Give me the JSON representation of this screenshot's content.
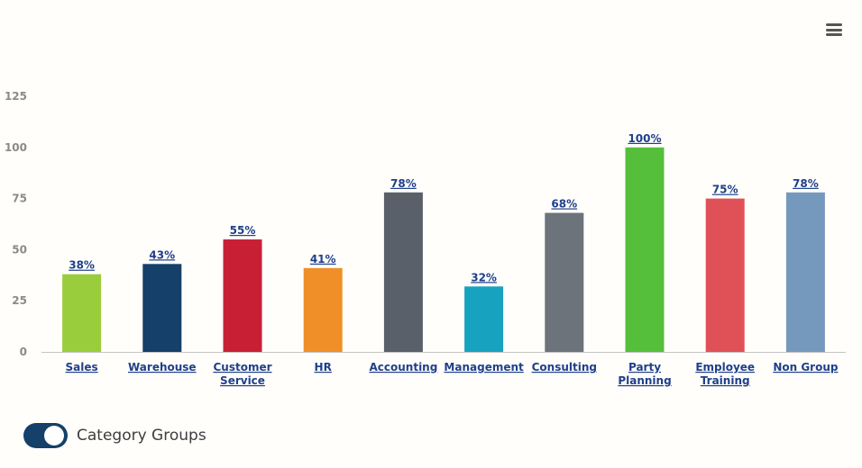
{
  "chart_data": {
    "type": "bar",
    "ylim": [
      0,
      125
    ],
    "yticks": [
      0,
      25,
      50,
      75,
      100,
      125
    ],
    "categories": [
      [
        "Sales"
      ],
      [
        "Warehouse"
      ],
      [
        "Customer",
        "Service"
      ],
      [
        "HR"
      ],
      [
        "Accounting"
      ],
      [
        "Management"
      ],
      [
        "Consulting"
      ],
      [
        "Party",
        "Planning"
      ],
      [
        "Employee",
        "Training"
      ],
      [
        "Non Group"
      ]
    ],
    "values": [
      38,
      43,
      55,
      41,
      78,
      32,
      68,
      100,
      75,
      78
    ],
    "data_labels": [
      "38%",
      "43%",
      "55%",
      "41%",
      "78%",
      "32%",
      "68%",
      "100%",
      "75%",
      "78%"
    ],
    "colors": [
      "#9acd3c",
      "#14406a",
      "#c81f35",
      "#f08f28",
      "#5a6069",
      "#17a2bf",
      "#6c737a",
      "#55bf3b",
      "#e05157",
      "#7599bd"
    ],
    "title": "",
    "xlabel": "",
    "ylabel": ""
  },
  "menu": {
    "icon": "hamburger-menu-icon"
  },
  "toggle": {
    "label": "Category Groups",
    "on": true,
    "color": "#14406a"
  }
}
